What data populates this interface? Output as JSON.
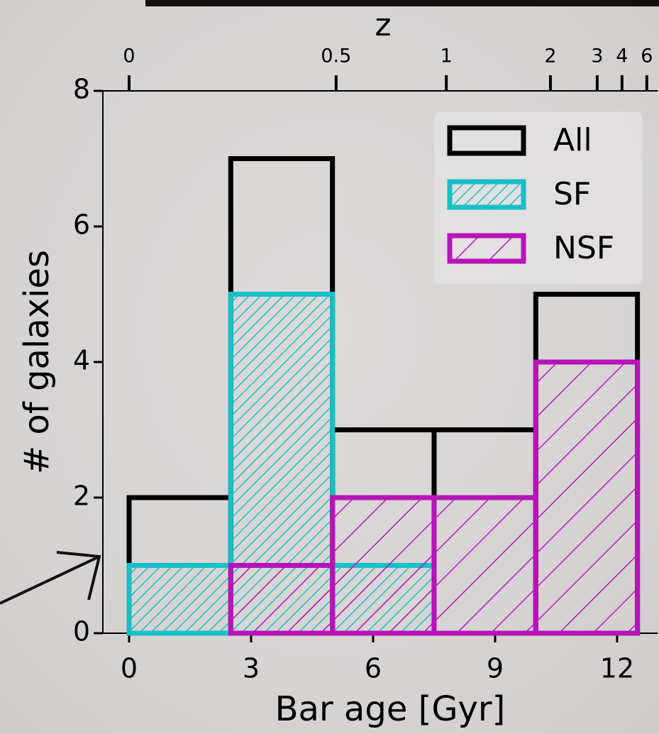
{
  "chart_data": {
    "type": "histogram",
    "title": "z",
    "xlabel": "Bar age [Gyr]",
    "ylabel": "# of galaxies",
    "bins": [
      0,
      2.5,
      5,
      7.5,
      10,
      12.5
    ],
    "series": [
      {
        "name": "All",
        "color": "#000000",
        "values": [
          2,
          7,
          3,
          3,
          5
        ]
      },
      {
        "name": "SF",
        "color": "#17bfc6",
        "hatch": "///",
        "values": [
          1,
          5,
          1,
          0,
          0
        ]
      },
      {
        "name": "NSF",
        "color": "#b614b8",
        "hatch": "/",
        "values": [
          0,
          1,
          2,
          2,
          4
        ]
      }
    ],
    "xlim": [
      -0.65,
      13
    ],
    "ylim": [
      0,
      8
    ],
    "xticks": [
      0,
      3,
      6,
      9,
      12
    ],
    "yticks": [
      0,
      2,
      4,
      6,
      8
    ],
    "x2ticks": [
      {
        "value": 0,
        "label": "0"
      },
      {
        "value": 5.09,
        "label": "0.5"
      },
      {
        "value": 7.8,
        "label": "1"
      },
      {
        "value": 10.36,
        "label": "2"
      },
      {
        "value": 11.51,
        "label": "3"
      },
      {
        "value": 12.12,
        "label": "4"
      },
      {
        "value": 12.73,
        "label": "6"
      }
    ],
    "legend": "upper right"
  }
}
